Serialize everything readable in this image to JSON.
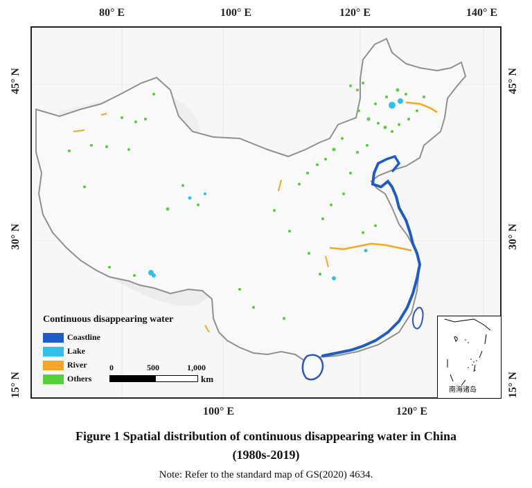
{
  "axes": {
    "top_longitudes": [
      "80° E",
      "100° E",
      "120° E",
      "140° E"
    ],
    "bottom_longitudes": [
      "100° E",
      "120° E"
    ],
    "left_latitudes": [
      "45° N",
      "30° N",
      "15° N"
    ],
    "right_latitudes": [
      "45° N",
      "30° N",
      "15° N"
    ]
  },
  "legend": {
    "title": "Continuous disappearing water",
    "items": [
      {
        "label": "Coastline",
        "color": "#1f5bc4"
      },
      {
        "label": "Lake",
        "color": "#2fc1ea"
      },
      {
        "label": "River",
        "color": "#f5a623"
      },
      {
        "label": "Others",
        "color": "#57d13a"
      }
    ]
  },
  "scale_bar": {
    "ticks": [
      "0",
      "500",
      "1,000"
    ],
    "unit": "km"
  },
  "inset": {
    "label": "南海诸岛"
  },
  "caption": {
    "line1": "Figure 1    Spatial distribution of continuous disappearing water in China",
    "line2": "(1980s-2019)"
  },
  "note": "Note: Refer to the standard map of GS(2020) 4634."
}
